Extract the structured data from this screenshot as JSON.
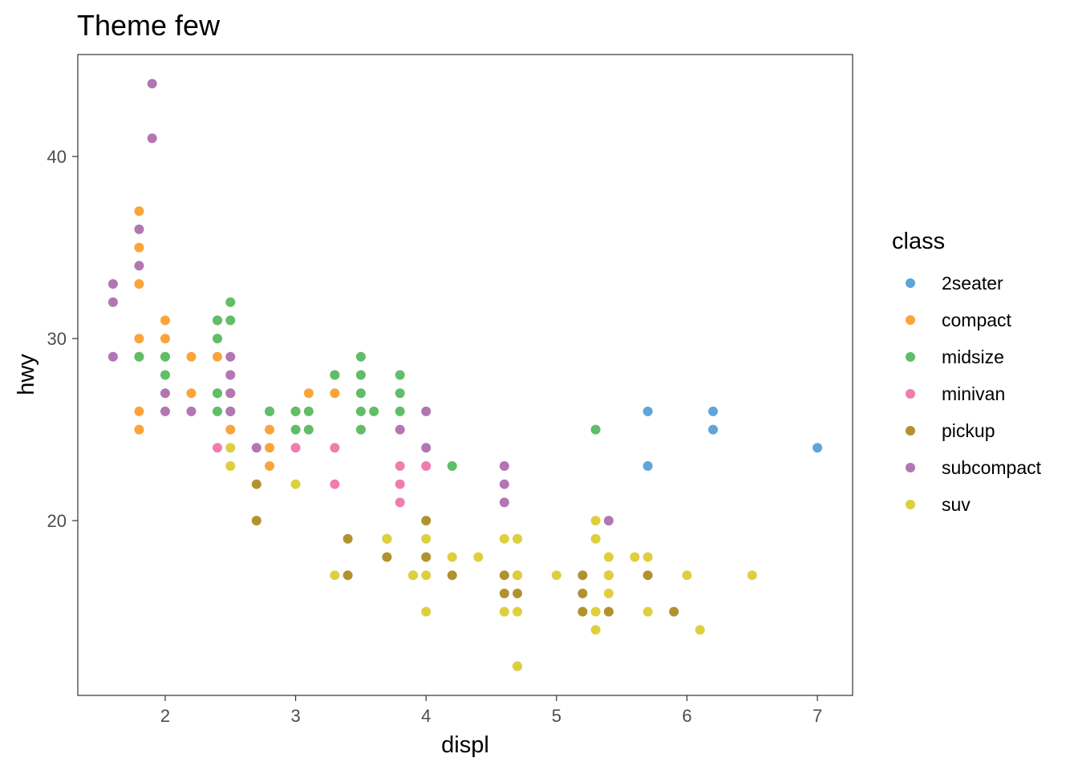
{
  "chart_data": {
    "type": "scatter",
    "title": "Theme few",
    "xlabel": "displ",
    "ylabel": "hwy",
    "xlim": [
      1.33,
      7.27
    ],
    "ylim": [
      10.4,
      45.6
    ],
    "x_ticks": [
      2,
      3,
      4,
      5,
      6,
      7
    ],
    "y_ticks": [
      20,
      30,
      40
    ],
    "grid": false,
    "legend": {
      "title": "class",
      "position": "right"
    },
    "series": [
      {
        "name": "2seater",
        "color": "#5DA5DA",
        "points": [
          [
            5.7,
            26
          ],
          [
            5.7,
            23
          ],
          [
            6.2,
            26
          ],
          [
            6.2,
            25
          ],
          [
            7.0,
            24
          ]
        ]
      },
      {
        "name": "compact",
        "color": "#FAA43A",
        "points": [
          [
            1.8,
            37
          ],
          [
            1.8,
            35
          ],
          [
            1.8,
            33
          ],
          [
            1.8,
            30
          ],
          [
            1.8,
            29
          ],
          [
            1.8,
            26
          ],
          [
            1.8,
            25
          ],
          [
            2.0,
            31
          ],
          [
            2.0,
            30
          ],
          [
            2.0,
            29
          ],
          [
            2.2,
            29
          ],
          [
            2.2,
            27
          ],
          [
            2.4,
            31
          ],
          [
            2.4,
            29
          ],
          [
            2.4,
            27
          ],
          [
            2.5,
            27
          ],
          [
            2.5,
            25
          ],
          [
            2.8,
            26
          ],
          [
            2.8,
            25
          ],
          [
            2.8,
            24
          ],
          [
            2.8,
            23
          ],
          [
            3.0,
            26
          ],
          [
            3.1,
            27
          ],
          [
            3.3,
            28
          ],
          [
            3.3,
            27
          ]
        ]
      },
      {
        "name": "midsize",
        "color": "#60BD68",
        "points": [
          [
            1.8,
            29
          ],
          [
            2.0,
            29
          ],
          [
            2.0,
            28
          ],
          [
            2.4,
            31
          ],
          [
            2.4,
            30
          ],
          [
            2.4,
            27
          ],
          [
            2.4,
            26
          ],
          [
            2.5,
            32
          ],
          [
            2.5,
            31
          ],
          [
            2.5,
            26
          ],
          [
            2.8,
            26
          ],
          [
            3.0,
            26
          ],
          [
            3.0,
            25
          ],
          [
            3.1,
            26
          ],
          [
            3.1,
            25
          ],
          [
            3.3,
            28
          ],
          [
            3.5,
            29
          ],
          [
            3.5,
            28
          ],
          [
            3.5,
            27
          ],
          [
            3.5,
            26
          ],
          [
            3.5,
            25
          ],
          [
            3.6,
            26
          ],
          [
            3.8,
            28
          ],
          [
            3.8,
            27
          ],
          [
            3.8,
            26
          ],
          [
            4.2,
            23
          ],
          [
            5.3,
            25
          ]
        ]
      },
      {
        "name": "minivan",
        "color": "#F17CB0",
        "points": [
          [
            2.4,
            24
          ],
          [
            3.0,
            24
          ],
          [
            3.3,
            24
          ],
          [
            3.3,
            22
          ],
          [
            3.8,
            23
          ],
          [
            3.8,
            22
          ],
          [
            3.8,
            21
          ],
          [
            4.0,
            23
          ]
        ]
      },
      {
        "name": "pickup",
        "color": "#B2912F",
        "points": [
          [
            2.7,
            22
          ],
          [
            2.7,
            20
          ],
          [
            3.4,
            19
          ],
          [
            3.4,
            17
          ],
          [
            3.7,
            19
          ],
          [
            3.7,
            18
          ],
          [
            3.9,
            17
          ],
          [
            4.0,
            20
          ],
          [
            4.0,
            18
          ],
          [
            4.2,
            17
          ],
          [
            4.6,
            17
          ],
          [
            4.6,
            16
          ],
          [
            4.7,
            19
          ],
          [
            4.7,
            17
          ],
          [
            4.7,
            16
          ],
          [
            4.7,
            12
          ],
          [
            5.2,
            17
          ],
          [
            5.2,
            16
          ],
          [
            5.2,
            15
          ],
          [
            5.4,
            17
          ],
          [
            5.4,
            15
          ],
          [
            5.7,
            17
          ],
          [
            5.9,
            15
          ]
        ]
      },
      {
        "name": "subcompact",
        "color": "#B276B2",
        "points": [
          [
            1.6,
            33
          ],
          [
            1.6,
            32
          ],
          [
            1.6,
            29
          ],
          [
            1.8,
            36
          ],
          [
            1.8,
            34
          ],
          [
            1.9,
            44
          ],
          [
            1.9,
            41
          ],
          [
            2.0,
            27
          ],
          [
            2.0,
            26
          ],
          [
            2.2,
            26
          ],
          [
            2.5,
            29
          ],
          [
            2.5,
            28
          ],
          [
            2.5,
            27
          ],
          [
            2.5,
            26
          ],
          [
            2.7,
            24
          ],
          [
            3.8,
            25
          ],
          [
            4.0,
            26
          ],
          [
            4.0,
            24
          ],
          [
            4.6,
            23
          ],
          [
            4.6,
            22
          ],
          [
            4.6,
            21
          ],
          [
            5.4,
            20
          ]
        ]
      },
      {
        "name": "suv",
        "color": "#DECF3F",
        "points": [
          [
            2.5,
            24
          ],
          [
            2.5,
            23
          ],
          [
            3.0,
            22
          ],
          [
            3.3,
            17
          ],
          [
            3.7,
            19
          ],
          [
            3.9,
            17
          ],
          [
            4.0,
            19
          ],
          [
            4.0,
            17
          ],
          [
            4.0,
            15
          ],
          [
            4.2,
            18
          ],
          [
            4.4,
            18
          ],
          [
            4.6,
            19
          ],
          [
            4.6,
            15
          ],
          [
            4.7,
            19
          ],
          [
            4.7,
            17
          ],
          [
            4.7,
            15
          ],
          [
            4.7,
            12
          ],
          [
            5.0,
            17
          ],
          [
            5.3,
            20
          ],
          [
            5.3,
            19
          ],
          [
            5.3,
            15
          ],
          [
            5.3,
            14
          ],
          [
            5.4,
            18
          ],
          [
            5.4,
            17
          ],
          [
            5.4,
            16
          ],
          [
            5.6,
            18
          ],
          [
            5.7,
            18
          ],
          [
            5.7,
            15
          ],
          [
            6.0,
            17
          ],
          [
            6.1,
            14
          ],
          [
            6.5,
            17
          ]
        ]
      }
    ]
  }
}
